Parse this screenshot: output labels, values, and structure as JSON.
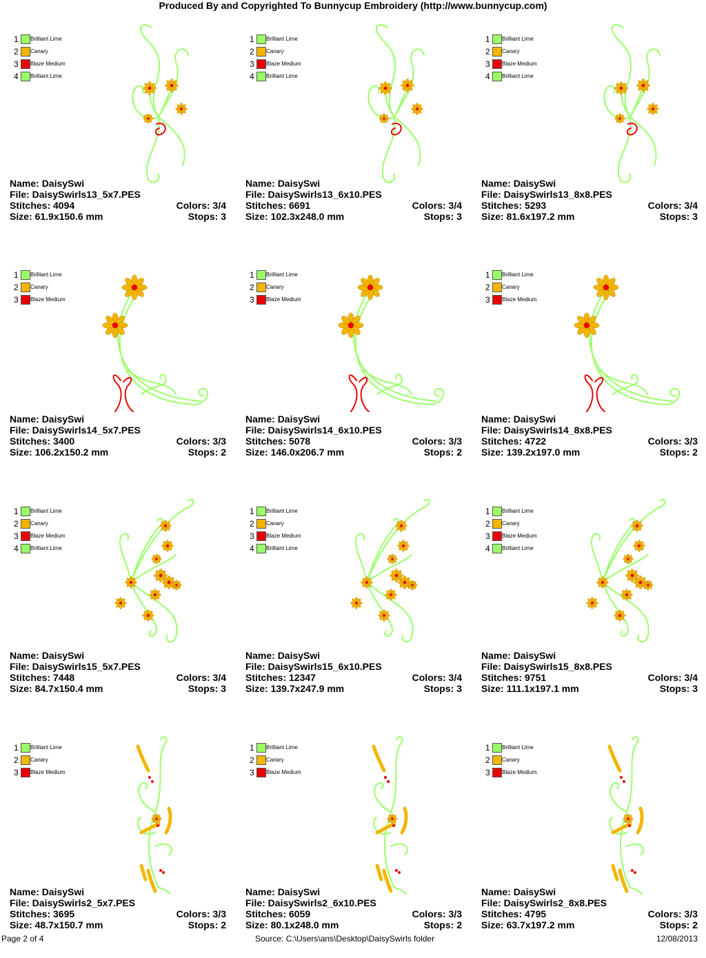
{
  "header": {
    "title": "Produced By and Copyrighted To Bunnycup Embroidery (http://www.bunnycup.com)"
  },
  "labels": {
    "name": "Name: ",
    "file": "File: ",
    "stitches": "Stitches: ",
    "size": "Size: ",
    "colors": "Colors: ",
    "stops": "Stops: "
  },
  "colors": {
    "Brilliant Lime": "#99ff66",
    "Canary": "#f2b600",
    "Blaze Medium": "#e80000"
  },
  "cards": [
    {
      "name": "DaisySwi",
      "file": "DaisySwirls13_5x7.PES",
      "stitches": "4094",
      "size": "61.9x150.6 mm",
      "colors": "3/4",
      "stops": "3",
      "design": "swirl-bouquet",
      "legend": [
        {
          "num": "1",
          "name": "Brilliant Lime"
        },
        {
          "num": "2",
          "name": "Canary"
        },
        {
          "num": "3",
          "name": "Blaze Medium"
        },
        {
          "num": "4",
          "name": "Brilliant Lime"
        }
      ]
    },
    {
      "name": "DaisySwi",
      "file": "DaisySwirls13_6x10.PES",
      "stitches": "6691",
      "size": "102.3x248.0 mm",
      "colors": "3/4",
      "stops": "3",
      "design": "swirl-bouquet",
      "legend": [
        {
          "num": "1",
          "name": "Brilliant Lime"
        },
        {
          "num": "2",
          "name": "Canary"
        },
        {
          "num": "3",
          "name": "Blaze Medium"
        },
        {
          "num": "4",
          "name": "Brilliant Lime"
        }
      ]
    },
    {
      "name": "DaisySwi",
      "file": "DaisySwirls13_8x8.PES",
      "stitches": "5293",
      "size": "81.6x197.2 mm",
      "colors": "3/4",
      "stops": "3",
      "design": "swirl-bouquet",
      "legend": [
        {
          "num": "1",
          "name": "Brilliant Lime"
        },
        {
          "num": "2",
          "name": "Canary"
        },
        {
          "num": "3",
          "name": "Blaze Medium"
        },
        {
          "num": "4",
          "name": "Brilliant Lime"
        }
      ]
    },
    {
      "name": "DaisySwi",
      "file": "DaisySwirls14_5x7.PES",
      "stitches": "3400",
      "size": "106.2x150.2 mm",
      "colors": "3/3",
      "stops": "2",
      "design": "crescent",
      "legend": [
        {
          "num": "1",
          "name": "Brilliant Lime"
        },
        {
          "num": "2",
          "name": "Canary"
        },
        {
          "num": "3",
          "name": "Blaze Medium"
        }
      ]
    },
    {
      "name": "DaisySwi",
      "file": "DaisySwirls14_6x10.PES",
      "stitches": "5078",
      "size": "146.0x206.7 mm",
      "colors": "3/3",
      "stops": "2",
      "design": "crescent",
      "legend": [
        {
          "num": "1",
          "name": "Brilliant Lime"
        },
        {
          "num": "2",
          "name": "Canary"
        },
        {
          "num": "3",
          "name": "Blaze Medium"
        }
      ]
    },
    {
      "name": "DaisySwi",
      "file": "DaisySwirls14_8x8.PES",
      "stitches": "4722",
      "size": "139.2x197.0 mm",
      "colors": "3/3",
      "stops": "2",
      "design": "crescent",
      "legend": [
        {
          "num": "1",
          "name": "Brilliant Lime"
        },
        {
          "num": "2",
          "name": "Canary"
        },
        {
          "num": "3",
          "name": "Blaze Medium"
        }
      ]
    },
    {
      "name": "DaisySwi",
      "file": "DaisySwirls15_5x7.PES",
      "stitches": "7448",
      "size": "84.7x150.4 mm",
      "colors": "3/4",
      "stops": "3",
      "design": "fan",
      "legend": [
        {
          "num": "1",
          "name": "Brilliant Lime"
        },
        {
          "num": "2",
          "name": "Canary"
        },
        {
          "num": "3",
          "name": "Blaze Medium"
        },
        {
          "num": "4",
          "name": "Brilliant Lime"
        }
      ]
    },
    {
      "name": "DaisySwi",
      "file": "DaisySwirls15_6x10.PES",
      "stitches": "12347",
      "size": "139.7x247.9 mm",
      "colors": "3/4",
      "stops": "3",
      "design": "fan",
      "legend": [
        {
          "num": "1",
          "name": "Brilliant Lime"
        },
        {
          "num": "2",
          "name": "Canary"
        },
        {
          "num": "3",
          "name": "Blaze Medium"
        },
        {
          "num": "4",
          "name": "Brilliant Lime"
        }
      ]
    },
    {
      "name": "DaisySwi",
      "file": "DaisySwirls15_8x8.PES",
      "stitches": "9751",
      "size": "111.1x197.1 mm",
      "colors": "3/4",
      "stops": "3",
      "design": "fan",
      "legend": [
        {
          "num": "1",
          "name": "Brilliant Lime"
        },
        {
          "num": "2",
          "name": "Canary"
        },
        {
          "num": "3",
          "name": "Blaze Medium"
        },
        {
          "num": "4",
          "name": "Brilliant Lime"
        }
      ]
    },
    {
      "name": "DaisySwi",
      "file": "DaisySwirls2_5x7.PES",
      "stitches": "3695",
      "size": "48.7x150.7 mm",
      "colors": "3/3",
      "stops": "2",
      "design": "vertical",
      "legend": [
        {
          "num": "1",
          "name": "Brilliant Lime"
        },
        {
          "num": "2",
          "name": "Canary"
        },
        {
          "num": "3",
          "name": "Blaze Medium"
        }
      ]
    },
    {
      "name": "DaisySwi",
      "file": "DaisySwirls2_6x10.PES",
      "stitches": "6059",
      "size": "80.1x248.0 mm",
      "colors": "3/3",
      "stops": "2",
      "design": "vertical",
      "legend": [
        {
          "num": "1",
          "name": "Brilliant Lime"
        },
        {
          "num": "2",
          "name": "Canary"
        },
        {
          "num": "3",
          "name": "Blaze Medium"
        }
      ]
    },
    {
      "name": "DaisySwi",
      "file": "DaisySwirls2_8x8.PES",
      "stitches": "4795",
      "size": "63.7x197.2 mm",
      "colors": "3/3",
      "stops": "2",
      "design": "vertical",
      "legend": [
        {
          "num": "1",
          "name": "Brilliant Lime"
        },
        {
          "num": "2",
          "name": "Canary"
        },
        {
          "num": "3",
          "name": "Blaze Medium"
        }
      ]
    }
  ],
  "footer": {
    "page": "Page 2 of 4",
    "source": "Source: C:\\Users\\ans\\Desktop\\DaisySwirls folder",
    "date": "12/08/2013"
  }
}
